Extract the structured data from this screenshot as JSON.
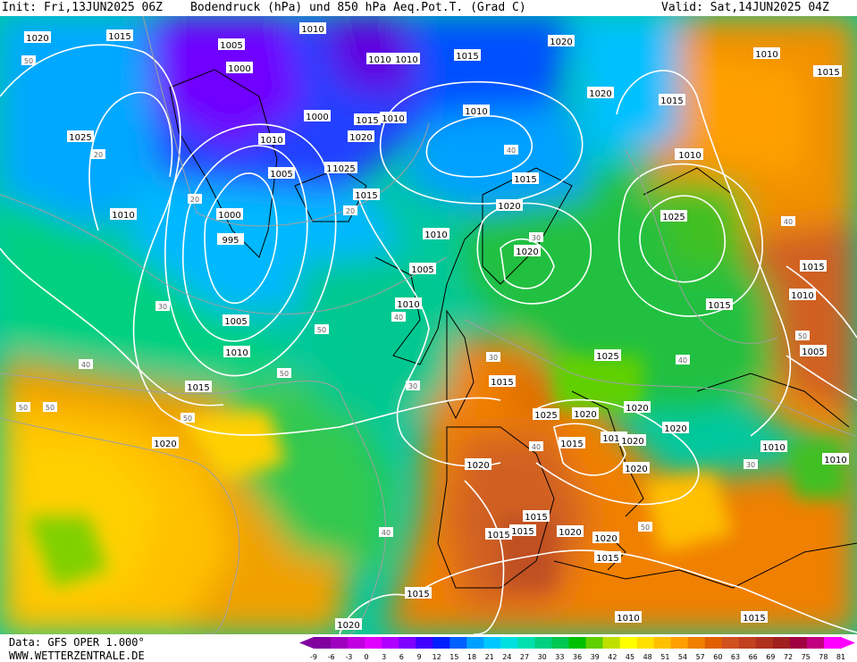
{
  "header": {
    "init": "Init: Fri,13JUN2025 06Z",
    "title": "Bodendruck (hPa) und 850 hPa Aeq.Pot.T. (Grad C)",
    "valid": "Valid: Sat,14JUN2025 04Z"
  },
  "footer": {
    "data_line": "Data: GFS OPER 1.000°",
    "site": "WWW.WETTERZENTRALE.DE"
  },
  "legend": {
    "ticks": [
      "-9",
      "-6",
      "-3",
      "0",
      "3",
      "6",
      "9",
      "12",
      "15",
      "18",
      "21",
      "24",
      "27",
      "30",
      "33",
      "36",
      "39",
      "42",
      "45",
      "48",
      "51",
      "54",
      "57",
      "60",
      "63",
      "66",
      "69",
      "72",
      "75",
      "78",
      "81"
    ],
    "colors": [
      "#8000a0",
      "#a000c0",
      "#c000e0",
      "#e000ff",
      "#b000ff",
      "#8000ff",
      "#4000ff",
      "#0020ff",
      "#0060ff",
      "#00a0ff",
      "#00c8ff",
      "#00e0e0",
      "#00e0b0",
      "#00d080",
      "#00c850",
      "#00c000",
      "#60d000",
      "#c0e000",
      "#ffff00",
      "#ffe000",
      "#ffc000",
      "#ffa000",
      "#f08000",
      "#e06000",
      "#d05020",
      "#c04020",
      "#b03020",
      "#a02020",
      "#a00040",
      "#c00080",
      "#ff00ff"
    ]
  },
  "pressure_labels": [
    "1020",
    "1015",
    "1005",
    "1010",
    "1010",
    "1010",
    "1015",
    "1020",
    "1010",
    "1025",
    "1010",
    "1005",
    "1000",
    "1010",
    "1015",
    "1020",
    "1015",
    "1000",
    "1005",
    "1025",
    "1010",
    "1015",
    "1020",
    "1010",
    "1020",
    "1000",
    "995",
    "1015",
    "1020",
    "1025",
    "1005",
    "1010",
    "1010",
    "1015",
    "1005",
    "1010",
    "1015",
    "1025",
    "1015",
    "1020",
    "1020",
    "1015",
    "1020",
    "1020",
    "1020",
    "1020",
    "1025",
    "1015",
    "1020",
    "1020",
    "1015",
    "1015",
    "1015",
    "1020",
    "1015",
    "1015",
    "1015",
    "1010",
    "1010",
    "1015",
    "1015",
    "1010",
    "1005",
    "1010",
    "1010",
    "1015",
    "1010",
    "1020"
  ],
  "theta_labels": [
    "50",
    "20",
    "20",
    "30",
    "40",
    "50",
    "50",
    "30",
    "40",
    "50",
    "50",
    "20",
    "40",
    "30",
    "30",
    "40",
    "50",
    "40",
    "30",
    "40",
    "50",
    "40",
    "50"
  ]
}
